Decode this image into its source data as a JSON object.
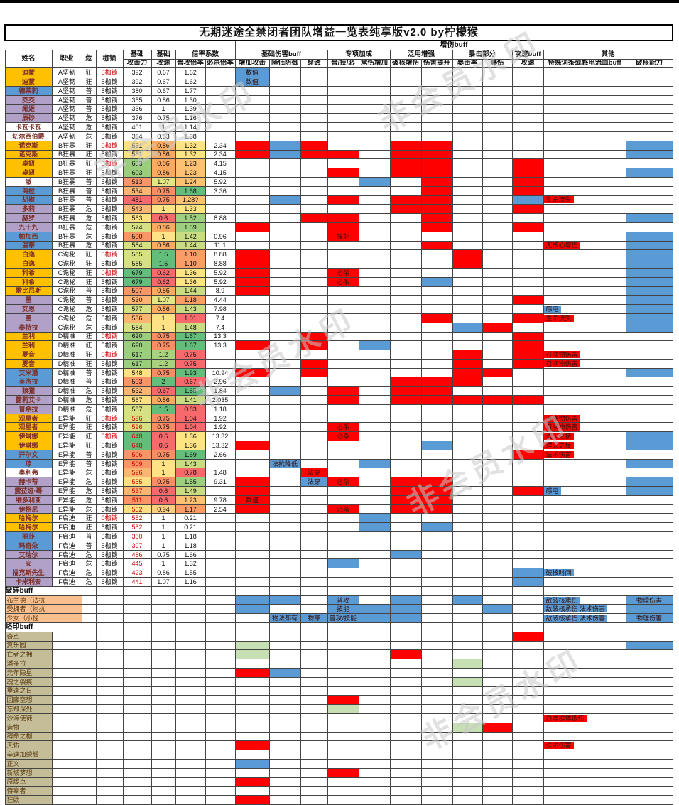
{
  "title": "无期迷途全禁闭者团队增益一览表纯享版v2.0 by柠檬猴",
  "watermark_text": "非会员水印",
  "colors": {
    "red": "#ff0000",
    "blue": "#5b9bd5",
    "green": "#c6e0b4",
    "name_orange": "#ffc000",
    "name_blue": "#5b9bd5",
    "name_purple": "#b1a0c7",
    "name_white": "#ffffff",
    "break_label": "#fabf8f",
    "brand_label": "#c4bd97"
  },
  "header": {
    "buff_group": "增伤buff",
    "groups_row": [
      "基础",
      "基础",
      "倍率系数",
      "基础伤害buff",
      "专项加成",
      "泛用增强",
      "暴击部分",
      "攻速buff",
      "其他"
    ],
    "left_heads": [
      "姓名",
      "职业",
      "危",
      "枷锁"
    ],
    "sub_heads": [
      "攻击力",
      "攻速",
      "普攻倍率",
      "必杀倍率",
      "增加攻击",
      "降低防御",
      "穿透",
      "普/技/必",
      "承伤增加",
      "破核增伤",
      "伤害提升",
      "暴击率",
      "爆伤",
      "攻速",
      "特殊词条或感电流血buff",
      "破核能力"
    ]
  },
  "rows": [
    [
      "迪蒙",
      "o",
      "A坚韧",
      "狂",
      "0枷锁",
      "392",
      "0.67",
      "1.62",
      "",
      {
        "a": "b:数值"
      }
    ],
    [
      "迪蒙",
      "o",
      "A坚韧",
      "狂",
      "5枷锁",
      "392",
      "0.67",
      "1.62",
      "",
      {
        "a": "b:数值"
      }
    ],
    [
      "德莱莉",
      "bl",
      "A坚韧",
      "普",
      "5枷锁",
      "380",
      "0.67",
      "1.77",
      "",
      {}
    ],
    [
      "茭茭",
      "pu",
      "A坚韧",
      "普",
      "5枷锁",
      "355",
      "0.86",
      "1.30",
      "",
      {}
    ],
    [
      "阑姬",
      "pu",
      "A坚韧",
      "普",
      "5枷锁",
      "366",
      "1",
      "1.39",
      "",
      {}
    ],
    [
      "辰砂",
      "pu",
      "A坚韧",
      "危",
      "5枷锁",
      "376",
      "0.75",
      "1.16",
      "",
      {}
    ],
    [
      "卡瓦卡瓦",
      "w",
      "A坚韧",
      "危",
      "5枷锁",
      "401",
      "1",
      "1.14",
      "",
      {}
    ],
    [
      "切尔西伯爵",
      "w",
      "A坚韧",
      "危",
      "5枷锁",
      "364",
      "0.83",
      "1.38",
      "",
      {}
    ],
    [
      "诺克斯",
      "o",
      "B狂暴",
      "狂",
      "0枷锁",
      "561",
      "0.86",
      "1.32",
      "2.34",
      {
        "a": "r",
        "d": "b",
        "p": "r",
        "h": "r",
        "s": "r",
        "k": "b"
      }
    ],
    [
      "诺克斯",
      "o",
      "B狂暴",
      "狂",
      "5枷锁",
      "561",
      "0.86",
      "1.32",
      "2.34",
      {
        "a": "r",
        "d": "b",
        "p": "r",
        "j": "r",
        "h": "r",
        "s": "r",
        "k": "b"
      }
    ],
    [
      "卓妞",
      "o",
      "B狂暴",
      "狂",
      "0枷锁",
      "603",
      "0.86",
      "1.23",
      "4.15",
      {
        "h": "r",
        "s": "r",
        "sp": "r"
      }
    ],
    [
      "卓妞",
      "o",
      "B狂暴",
      "狂",
      "5枷锁",
      "603",
      "0.86",
      "1.23",
      "4.15",
      {
        "j": "r",
        "h": "r",
        "s": "r",
        "sp": "r",
        "k": "b"
      }
    ],
    [
      "潋",
      "w",
      "B狂暴",
      "普",
      "5枷锁",
      "513",
      "1.07",
      "1.24",
      "5.92",
      {
        "c": "b",
        "s": "r",
        "sp": "r"
      }
    ],
    [
      "海拉",
      "bl",
      "B狂暴",
      "普",
      "5枷锁",
      "534",
      "0.75",
      "1.68",
      "3.36",
      {
        "s": "r",
        "sp": "r"
      }
    ],
    [
      "胡椒",
      "bl",
      "B狂暴",
      "普",
      "5枷锁",
      "481",
      "0.75",
      "1.28?",
      "",
      {
        "d": "b",
        "j": "r",
        "h": "r",
        "s": "r",
        "sp": "b",
        "t": "r:生命流失"
      }
    ],
    [
      "多莉",
      "pu",
      "B狂暴",
      "危",
      "5枷锁",
      "543",
      "1",
      "1.33",
      "",
      {
        "h": "r",
        "s": "r",
        "sp": "r"
      }
    ],
    [
      "赫罗",
      "pu",
      "B狂暴",
      "危",
      "5枷锁",
      "563",
      "0.6",
      "1.52",
      "8.88",
      {
        "p": "r",
        "j": "r",
        "s": "r",
        "k": "b"
      }
    ],
    [
      "九十九",
      "pu",
      "B狂暴",
      "危",
      "5枷锁",
      "574",
      "0.86",
      "1.59",
      "",
      {
        "a": "r",
        "j": "r",
        "s": "r",
        "sp": "r"
      }
    ],
    [
      "帕加西",
      "bl",
      "B狂暴",
      "危",
      "5枷锁",
      "500",
      "1",
      "1.42",
      "0.96",
      {
        "j": "r:技能",
        "k": "b"
      }
    ],
    [
      "温蒂",
      "bl",
      "B狂暴",
      "危",
      "5枷锁",
      "584",
      "0.86",
      "1.44",
      "11.1",
      {
        "s": "r",
        "t": "r:无核心增伤",
        "k": "b"
      }
    ],
    [
      "白逸",
      "o",
      "C诡秘",
      "狂",
      "0枷锁",
      "585",
      "1.5",
      "1.10",
      "8.88",
      {
        "a": "r",
        "cr": "r",
        "k": "b"
      }
    ],
    [
      "白逸",
      "o",
      "C诡秘",
      "狂",
      "5枷锁",
      "585",
      "1.5",
      "1.10",
      "8.88",
      {
        "a": "r",
        "cr": "r",
        "k": "b"
      }
    ],
    [
      "科希",
      "o",
      "C诡秘",
      "狂",
      "0枷锁",
      "679",
      "0.62",
      "1.36",
      "5.92",
      {
        "a": "r",
        "j": "r:必杀",
        "k": "b"
      }
    ],
    [
      "科希",
      "o",
      "C诡秘",
      "狂",
      "5枷锁",
      "679",
      "0.62",
      "1.36",
      "5.92",
      {
        "a": "r",
        "j": "r:必杀",
        "s": "b",
        "k": "b"
      }
    ],
    [
      "雷比尼斯",
      "o",
      "C诡秘",
      "普",
      "5枷锁",
      "507",
      "0.86",
      "1.44",
      "8.9",
      {
        "a": "r",
        "k": "b"
      }
    ],
    [
      "墨",
      "pu",
      "C诡秘",
      "普",
      "5枷锁",
      "530",
      "1.07",
      "1.18",
      "4.44",
      {
        "sp": "r",
        "k": "b"
      }
    ],
    [
      "艾恩",
      "pu",
      "C诡秘",
      "危",
      "5枷锁",
      "577",
      "0.86",
      "1.43",
      "7.98",
      {
        "t": "b:感电",
        "k": "b"
      }
    ],
    [
      "堇",
      "pu",
      "C诡秘",
      "危",
      "5枷锁",
      "536",
      "1",
      "1.01",
      "7.4",
      {
        "s": "r",
        "sp": "r",
        "t": "r:生命流失",
        "k": "b"
      }
    ],
    [
      "泰特拉",
      "pu",
      "C诡秘",
      "危",
      "5枷锁",
      "584",
      "1",
      "1.48",
      "7.4",
      {
        "cr": "b",
        "cd": "r",
        "k": "b"
      }
    ],
    [
      "兰利",
      "o",
      "D精准",
      "狂",
      "0枷锁",
      "620",
      "0.75",
      "1.67",
      "13.3",
      {
        "p": "r",
        "sp": "r"
      }
    ],
    [
      "兰利",
      "o",
      "D精准",
      "狂",
      "5枷锁",
      "620",
      "0.75",
      "1.67",
      "13.3",
      {
        "a": "r",
        "p": "r",
        "c": "b",
        "sp": "r"
      }
    ],
    [
      "夏音",
      "o",
      "D精准",
      "狂",
      "0枷锁",
      "617",
      "1.2",
      "0.75",
      "",
      {
        "cr": "r",
        "sp": "r",
        "t": "r:召唤物伤害"
      }
    ],
    [
      "夏音",
      "o",
      "D精准",
      "狂",
      "5枷锁",
      "617",
      "1.2",
      "0.75",
      "",
      {
        "p": "r",
        "cr": "r",
        "sp": "r",
        "t": "r:召唤物伤害"
      }
    ],
    [
      "艾米潘",
      "bl",
      "D精准",
      "普",
      "5枷锁",
      "548",
      "0.75",
      "1.93",
      "10.94",
      {
        "a": "r",
        "p": "r",
        "cr": "r",
        "cd": "r",
        "k": "b"
      }
    ],
    [
      "英洛拉",
      "bl",
      "D精准",
      "普",
      "5枷锁",
      "503",
      "2",
      "0.67",
      "2.96",
      {
        "h": "r",
        "s": "r",
        "cr": "r"
      }
    ],
    [
      "狼獾",
      "pu",
      "D精准",
      "危",
      "5枷锁",
      "532",
      "0.67",
      "1.65",
      "1.84",
      {
        "d": "b",
        "j": "r",
        "h": "r",
        "s": "r"
      }
    ],
    [
      "露莉艾卡",
      "pu",
      "D精准",
      "危",
      "5枷锁",
      "567",
      "0.86",
      "1.41",
      "2.035",
      {
        "j": "r",
        "h": "r",
        "s": "r",
        "cr": "r",
        "cd": "r",
        "sp": "r"
      }
    ],
    [
      "普希拉",
      "pu",
      "D精准",
      "危",
      "5枷锁",
      "587",
      "1.5",
      "0.83",
      "1.18",
      {}
    ],
    [
      "观星者",
      "o",
      "E异能",
      "狂",
      "0枷锁",
      "596",
      "0.75",
      "1.04",
      "1.92",
      {
        "t": "r:召唤物伤害"
      }
    ],
    [
      "观星者",
      "o",
      "E异能",
      "狂",
      "5枷锁",
      "596",
      "0.75",
      "1.04",
      "1.92",
      {
        "j": "r:必杀",
        "t": "r:召唤物伤害"
      }
    ],
    [
      "伊琳娜",
      "o",
      "E异能",
      "狂",
      "0枷锁",
      "648",
      "0.6",
      "1.36",
      "13.32",
      {
        "j": "r:必杀",
        "t": "r:湮灭之棱",
        "k": "b"
      }
    ],
    [
      "伊琳娜",
      "o",
      "E异能",
      "狂",
      "5枷锁",
      "648",
      "0.6",
      "1.36",
      "13.32",
      {
        "a": "r",
        "s": "b",
        "t": "r:湮灭之棱",
        "k": "b"
      }
    ],
    [
      "开尔文",
      "bl",
      "E异能",
      "普",
      "5枷锁",
      "506",
      "0.75",
      "1.69",
      "2.66",
      {
        "sp": "r",
        "t": "r:法术伤害"
      }
    ],
    [
      "琼",
      "bl",
      "E异能",
      "普",
      "5枷锁",
      "509",
      "1",
      "1.43",
      "",
      {
        "d": "b:法抗降低",
        "c": "b",
        "k": "b"
      }
    ],
    [
      "奥利弗",
      "w",
      "E异能",
      "危",
      "5枷锁",
      "526",
      "1",
      "0.78",
      "1.48",
      {
        "p": "r:法穿"
      }
    ],
    [
      "赫卡蒂",
      "pu",
      "E异能",
      "危",
      "5枷锁",
      "555",
      "0.75",
      "1.55",
      "9.31",
      {
        "a": "r",
        "p": "b:法穿",
        "j": "r:必杀",
        "h": "r",
        "s": "r",
        "k": "b"
      }
    ],
    [
      "露菈娅·蓦",
      "pu",
      "E异能",
      "危",
      "5枷锁",
      "537",
      "0.6",
      "1.49",
      "",
      {
        "a": "r",
        "h": "r",
        "s": "r",
        "sp": "r",
        "t": "b:感电",
        "k": "b"
      }
    ],
    [
      "维多利亚",
      "pu",
      "E异能",
      "危",
      "5枷锁",
      "511",
      "0.6",
      "1.23",
      "9.78",
      {
        "a": "r:数值",
        "h": "r",
        "s": "r"
      }
    ],
    [
      "伊格尼",
      "pu",
      "E异能",
      "危",
      "5枷锁",
      "562",
      "0.94",
      "1.17",
      "2.54",
      {
        "a": "r",
        "j": "r:必杀",
        "h": "r",
        "s": "r"
      }
    ],
    [
      "哈梅尔",
      "o",
      "F启迪",
      "狂",
      "0枷锁",
      "552",
      "1",
      "0.21",
      "",
      {
        "c": "b"
      }
    ],
    [
      "哈梅尔",
      "o",
      "F启迪",
      "狂",
      "5枷锁",
      "552",
      "1",
      "0.21",
      "",
      {
        "c": "b",
        "s": "b"
      }
    ],
    [
      "丽莎",
      "bl",
      "F启迪",
      "普",
      "5枷锁",
      "380",
      "1",
      "1.18",
      "",
      {}
    ],
    [
      "玛奇朵",
      "bl",
      "F启迪",
      "普",
      "5枷锁",
      "397",
      "1",
      "1.18",
      "",
      {}
    ],
    [
      "艾瑞尔",
      "pu",
      "F启迪",
      "危",
      "5枷锁",
      "486",
      "0.75",
      "1.66",
      "",
      {
        "h": "b"
      }
    ],
    [
      "安",
      "pu",
      "F启迪",
      "危",
      "5枷锁",
      "445",
      "1",
      "1.32",
      "",
      {
        "j": "b"
      }
    ],
    [
      "福克斯先生",
      "pu",
      "F启迪",
      "危",
      "5枷锁",
      "423",
      "0.86",
      "1.55",
      "",
      {
        "sp": "b",
        "t": "b:破核时间"
      }
    ],
    [
      "卡米利安",
      "pu",
      "F启迪",
      "危",
      "5枷锁",
      "441",
      "1.07",
      "1.16",
      "",
      {
        "sp": "b"
      }
    ]
  ],
  "sections": [
    {
      "label": "破碎buff",
      "label_bg": "#fabf8f",
      "label_span": 2,
      "rows": [
        [
          "布兰德（法抗",
          {
            "a": "b",
            "d": "b",
            "j": "b:普攻",
            "h": "b",
            "cr": "b",
            "t": "b:敌破核承伤",
            "k": "b:物理伤害"
          }
        ],
        [
          "受拥者（物抗",
          {
            "a": "b",
            "j": "b:技能",
            "c": "b",
            "h": "b",
            "cd": "b",
            "t": "b:敌破核承伤 法术伤害",
            "k": "b"
          }
        ],
        [
          "少女（小怪",
          {
            "d": "b:物法都有",
            "p": "b:物穿",
            "j": "b:普攻/技能",
            "c": "b",
            "h": "b",
            "t": "b:敌破核承伤 法术伤害",
            "k": "b:物理伤害"
          }
        ]
      ]
    },
    {
      "label": "烙印buff",
      "label_bg": "#c4bd97",
      "label_span": 1,
      "rows": [
        [
          "奇点",
          {
            "sp": "r"
          }
        ],
        [
          "复乐园",
          {
            "a": "g",
            "k": "b"
          }
        ],
        [
          "亡者之拥",
          {
            "a": "g",
            "h": "r"
          }
        ],
        [
          "潘多拉",
          {
            "cr": "g"
          }
        ],
        [
          "元年隐星",
          {
            "a": "r",
            "d": "b"
          }
        ],
        [
          "魂之裂痕",
          {
            "cr": "g"
          }
        ],
        [
          "重逢之日",
          {}
        ],
        [
          "回廊空想",
          {
            "j": "r"
          }
        ],
        [
          "忘却深处",
          {
            "j": "g"
          }
        ],
        [
          "沙海使徒",
          {
            "t": "r:白嫖群体低伤"
          }
        ],
        [
          "造物",
          {
            "cr": "g",
            "cd": "r"
          }
        ],
        [
          "缚命之枷",
          {}
        ],
        [
          "天佑",
          {
            "a": "r",
            "t": "r:法术伤害"
          }
        ],
        [
          "辛迪加荣耀",
          {}
        ],
        [
          "正义",
          {
            "a": "b"
          }
        ],
        [
          "新城梦想",
          {
            "j": "r"
          }
        ],
        [
          "原爆点",
          {
            "a": "r"
          }
        ],
        [
          "侍奉者",
          {}
        ],
        [
          "狂欲",
          {
            "a": "r"
          }
        ]
      ]
    }
  ]
}
